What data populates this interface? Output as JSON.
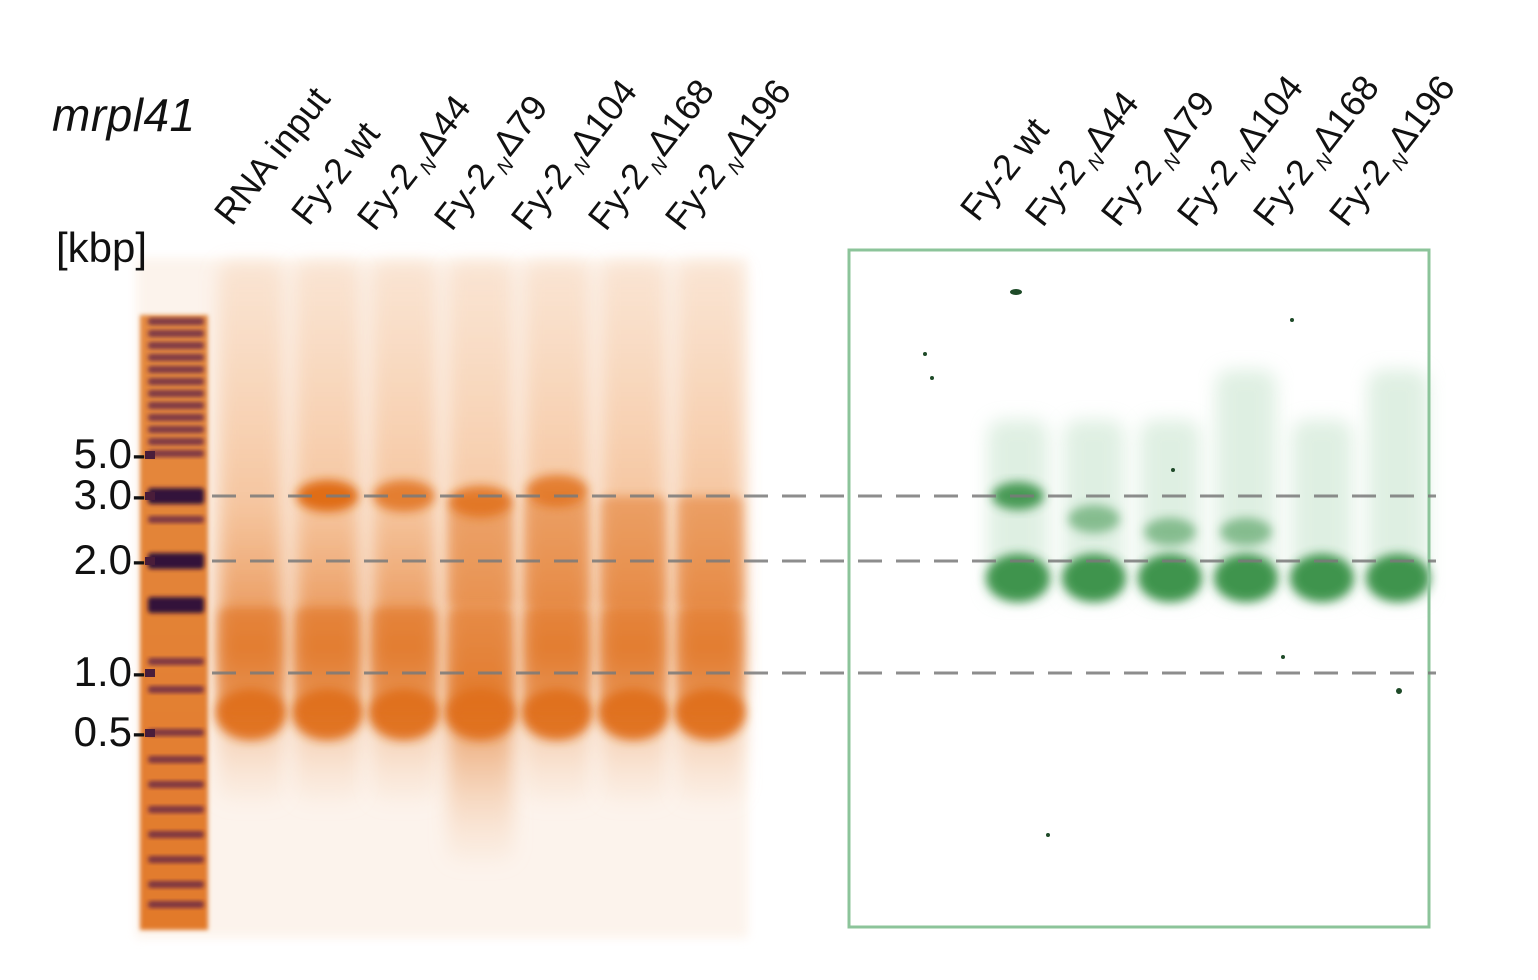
{
  "gene_name": "mrpl41",
  "size_unit_label": "[kbp]",
  "ladder_marks": [
    {
      "label": "5.0-",
      "kbp": 5.0
    },
    {
      "label": "3.0-",
      "kbp": 3.0
    },
    {
      "label": "2.0-",
      "kbp": 2.0
    },
    {
      "label": "1.0-",
      "kbp": 1.0
    },
    {
      "label": "0.5-",
      "kbp": 0.5
    }
  ],
  "reference_lines_kbp": [
    3.0,
    2.0,
    1.0
  ],
  "gel_left": {
    "stain_color": "#e0701f",
    "lanes": [
      {
        "prefix": "RNA input",
        "sub": "",
        "suffix": ""
      },
      {
        "prefix": "Fy-2 wt",
        "sub": "",
        "suffix": ""
      },
      {
        "prefix": "Fy-2",
        "sub": "N",
        "suffix": "Δ44"
      },
      {
        "prefix": "Fy-2",
        "sub": "N",
        "suffix": "Δ79"
      },
      {
        "prefix": "Fy-2",
        "sub": "N",
        "suffix": "Δ104"
      },
      {
        "prefix": "Fy-2",
        "sub": "N",
        "suffix": "Δ168"
      },
      {
        "prefix": "Fy-2",
        "sub": "N",
        "suffix": "Δ196"
      }
    ]
  },
  "gel_right": {
    "stain_color": "#2e8b3e",
    "frame_color": "#8cc49a",
    "lanes": [
      {
        "prefix": "Fy-2 wt",
        "sub": "",
        "suffix": ""
      },
      {
        "prefix": "Fy-2",
        "sub": "N",
        "suffix": "Δ44"
      },
      {
        "prefix": "Fy-2",
        "sub": "N",
        "suffix": "Δ79"
      },
      {
        "prefix": "Fy-2",
        "sub": "N",
        "suffix": "Δ104"
      },
      {
        "prefix": "Fy-2",
        "sub": "N",
        "suffix": "Δ168"
      },
      {
        "prefix": "Fy-2",
        "sub": "N",
        "suffix": "Δ196"
      }
    ]
  }
}
